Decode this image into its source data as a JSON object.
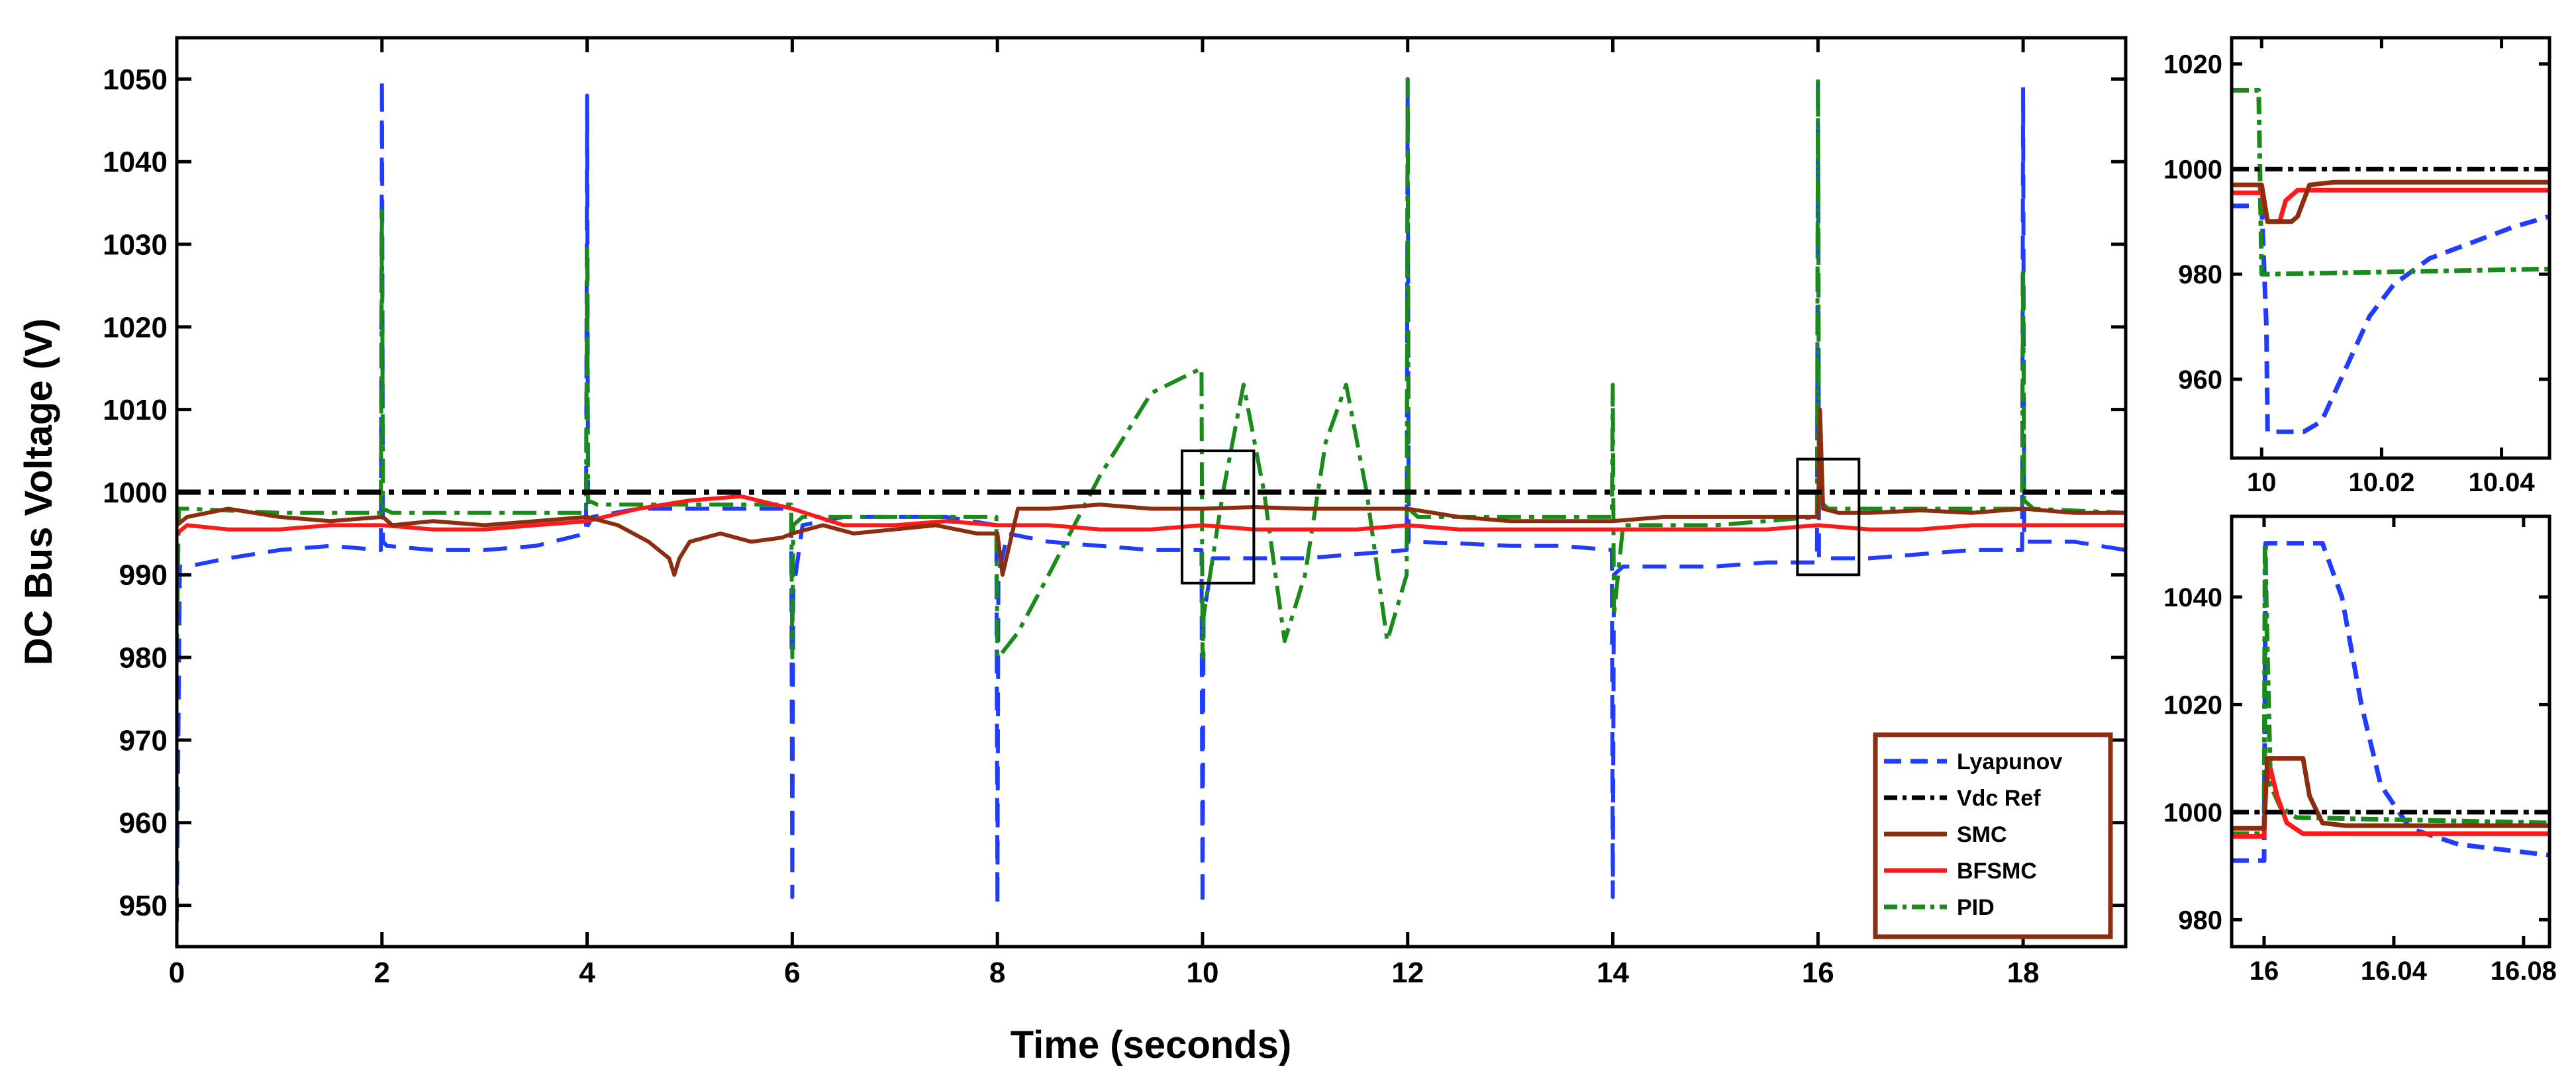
{
  "chart_data": [
    {
      "id": "main",
      "type": "line",
      "xlabel": "Time (seconds)",
      "ylabel": "DC Bus Voltage (V)",
      "xlim": [
        0,
        19
      ],
      "ylim": [
        945,
        1055
      ],
      "xticks": [
        0,
        2,
        4,
        6,
        8,
        10,
        12,
        14,
        16,
        18
      ],
      "yticks": [
        950,
        960,
        970,
        980,
        990,
        1000,
        1010,
        1020,
        1030,
        1040,
        1050
      ],
      "grid": false,
      "legend": {
        "placement": "bottom-right",
        "entries": [
          "Lyapunov",
          "Vdc Ref",
          "SMC",
          "BFSMC",
          "PID"
        ]
      },
      "zoom_boxes": [
        {
          "x": [
            9.8,
            10.5
          ],
          "y": [
            989,
            1005
          ]
        },
        {
          "x": [
            15.8,
            16.4
          ],
          "y": [
            990,
            1004
          ]
        }
      ],
      "series": [
        {
          "name": "Lyapunov",
          "color": "#1f3cff",
          "style": "dashed",
          "x": [
            0,
            0.03,
            0.1,
            0.5,
            1,
            1.5,
            1.99,
            2,
            2.01,
            2.05,
            2.5,
            3,
            3.5,
            3.99,
            4,
            4.01,
            4.05,
            4.5,
            5,
            5.5,
            5.99,
            6,
            6.01,
            6.1,
            6.5,
            7,
            7.5,
            7.99,
            8,
            8.01,
            8.1,
            8.5,
            9,
            9.5,
            9.99,
            10,
            10.01,
            10.1,
            10.5,
            11,
            11.5,
            11.99,
            12,
            12.01,
            12.05,
            12.5,
            13,
            13.5,
            13.99,
            14,
            14.01,
            14.1,
            14.5,
            15,
            15.5,
            15.99,
            16,
            16.01,
            16.1,
            16.5,
            17,
            17.5,
            17.99,
            18,
            18.01,
            18.1,
            18.5,
            19
          ],
          "y": [
            948,
            991,
            991,
            992,
            993,
            993.5,
            993,
            1050,
            994,
            993.5,
            993,
            993,
            993.5,
            995,
            1048,
            996,
            997,
            998,
            998,
            998,
            998,
            951,
            988,
            996,
            997,
            997,
            997,
            996,
            950,
            990,
            995,
            994,
            993.5,
            993,
            993,
            950,
            985,
            992,
            992,
            992,
            992.5,
            993,
            1050,
            994,
            994,
            993.8,
            993.5,
            993.5,
            993,
            951,
            990,
            991,
            991,
            991,
            991.5,
            991.5,
            1050,
            992,
            992,
            992,
            992.5,
            993,
            993,
            1049,
            994,
            994,
            994,
            993
          ]
        },
        {
          "name": "Vdc Ref",
          "color": "#000000",
          "style": "dashdot",
          "x": [
            0,
            19
          ],
          "y": [
            1000,
            1000
          ]
        },
        {
          "name": "SMC",
          "color": "#8b2e10",
          "style": "solid",
          "x": [
            0,
            0.1,
            0.5,
            1,
            1.5,
            2,
            2.01,
            2.1,
            2.5,
            3,
            3.5,
            4,
            4.3,
            4.6,
            4.8,
            4.85,
            4.9,
            5,
            5.3,
            5.6,
            5.9,
            6,
            6.3,
            6.6,
            7,
            7.4,
            7.8,
            8,
            8.05,
            8.2,
            8.5,
            9,
            9.5,
            10,
            10.5,
            11,
            11.5,
            12,
            12.5,
            13,
            13.5,
            14,
            14.5,
            15,
            15.5,
            16,
            16.02,
            16.05,
            16.2,
            16.5,
            17,
            17.5,
            18,
            18.5,
            19
          ],
          "y": [
            996,
            997,
            998,
            997,
            996.5,
            997,
            997,
            996,
            996.5,
            996,
            996.5,
            997,
            996,
            994,
            992,
            990,
            992,
            994,
            995,
            994,
            994.5,
            995,
            996,
            995,
            995.5,
            996,
            995,
            995,
            990,
            998,
            998,
            998.5,
            998,
            998,
            998.2,
            998,
            998,
            998,
            997,
            996.5,
            996.5,
            996.5,
            997,
            997,
            997,
            997,
            1010,
            998,
            997.5,
            997.5,
            997.8,
            997.5,
            998,
            997.5,
            997.5
          ]
        },
        {
          "name": "BFSMC",
          "color": "#ff1a1a",
          "style": "solid",
          "x": [
            0,
            0.1,
            0.5,
            1,
            1.5,
            2,
            2.5,
            3,
            3.5,
            4,
            4.5,
            5,
            5.5,
            6,
            6.5,
            7,
            7.5,
            8,
            8.5,
            9,
            9.5,
            10,
            10.5,
            11,
            11.5,
            12,
            12.5,
            13,
            13.5,
            14,
            14.5,
            15,
            15.5,
            16,
            16.5,
            17,
            17.5,
            18,
            18.5,
            19
          ],
          "y": [
            995,
            996,
            995.5,
            995.5,
            996,
            996,
            995.5,
            995.5,
            996,
            996.5,
            998,
            999,
            999.5,
            998,
            996,
            996,
            996.5,
            996,
            996,
            995.5,
            995.5,
            996,
            995.5,
            995.5,
            995.5,
            996,
            995.5,
            995.5,
            995.5,
            995.5,
            995.5,
            995.5,
            995.5,
            996,
            995.5,
            995.5,
            996,
            996,
            996,
            996
          ]
        },
        {
          "name": "PID",
          "color": "#1a8a1a",
          "style": "dashdot",
          "x": [
            0,
            0.02,
            0.1,
            1,
            1.99,
            2,
            2.01,
            2.1,
            3,
            3.99,
            4,
            4.01,
            4.1,
            5,
            5.99,
            6,
            6.01,
            6.1,
            7,
            7.99,
            8,
            8.01,
            8.2,
            8.5,
            9,
            9.5,
            9.99,
            10,
            10.01,
            10.2,
            10.4,
            10.6,
            10.8,
            11,
            11.2,
            11.4,
            11.6,
            11.8,
            11.99,
            12,
            12.01,
            12.1,
            13,
            13.99,
            14,
            14.01,
            14.1,
            15,
            15.99,
            16,
            16.01,
            16.1,
            17,
            17.99,
            18,
            18.01,
            18.1,
            19
          ],
          "y": [
            980,
            998,
            998,
            997.5,
            997.5,
            1034,
            998,
            997.5,
            997.5,
            997.5,
            1030,
            999,
            998.5,
            998.5,
            998.5,
            980,
            996,
            997,
            997,
            997,
            980,
            980,
            983,
            990,
            1002,
            1012,
            1015,
            980,
            985,
            1000,
            1013,
            1000,
            982,
            990,
            1006,
            1013,
            1000,
            982,
            990,
            1050,
            998,
            997,
            997,
            997,
            1013,
            985,
            996,
            996,
            997,
            1050,
            999,
            998,
            998,
            998,
            1027,
            999,
            998,
            997.5
          ]
        }
      ]
    },
    {
      "id": "inset_top",
      "type": "line",
      "xlim": [
        9.995,
        10.048
      ],
      "ylim": [
        945,
        1025
      ],
      "xticks": [
        10,
        10.02,
        10.04
      ],
      "yticks": [
        960,
        980,
        1000,
        1020
      ],
      "series": [
        {
          "name": "Lyapunov",
          "color": "#1f3cff",
          "style": "dashed",
          "x": [
            9.995,
            9.999,
            10,
            10.0008,
            10.001,
            10.005,
            10.007,
            10.01,
            10.014,
            10.018,
            10.022,
            10.028,
            10.035,
            10.042,
            10.048
          ],
          "y": [
            993,
            993,
            993,
            970,
            950,
            950,
            950,
            952,
            962,
            972,
            978,
            983,
            986,
            989,
            991
          ]
        },
        {
          "name": "Vdc Ref",
          "color": "#000000",
          "style": "dashdot",
          "x": [
            9.995,
            10.048
          ],
          "y": [
            1000,
            1000
          ]
        },
        {
          "name": "SMC",
          "color": "#8b2e10",
          "style": "solid",
          "x": [
            9.995,
            9.999,
            10,
            10.001,
            10.005,
            10.006,
            10.008,
            10.012,
            10.048
          ],
          "y": [
            997,
            997,
            997,
            990,
            990,
            991,
            997,
            997.5,
            997.5
          ]
        },
        {
          "name": "BFSMC",
          "color": "#ff1a1a",
          "style": "solid",
          "x": [
            9.995,
            9.999,
            10,
            10.001,
            10.003,
            10.004,
            10.006,
            10.048
          ],
          "y": [
            995.5,
            995.5,
            995.5,
            990,
            990,
            994,
            996,
            996
          ]
        },
        {
          "name": "PID",
          "color": "#1a8a1a",
          "style": "dashdot",
          "x": [
            9.995,
            9.999,
            9.9995,
            10,
            10.001,
            10.048
          ],
          "y": [
            1015,
            1015,
            1015,
            980,
            980,
            981
          ]
        }
      ]
    },
    {
      "id": "inset_bottom",
      "type": "line",
      "xlim": [
        15.99,
        16.088
      ],
      "ylim": [
        975,
        1055
      ],
      "xticks": [
        16,
        16.04,
        16.08
      ],
      "yticks": [
        980,
        1000,
        1020,
        1040
      ],
      "series": [
        {
          "name": "Lyapunov",
          "color": "#1f3cff",
          "style": "dashed",
          "x": [
            15.99,
            15.999,
            16,
            16.0005,
            16.006,
            16.012,
            16.018,
            16.024,
            16.03,
            16.036,
            16.045,
            16.06,
            16.088
          ],
          "y": [
            991,
            991,
            991,
            1050,
            1050,
            1050,
            1050,
            1040,
            1020,
            1005,
            997,
            994,
            992
          ]
        },
        {
          "name": "Vdc Ref",
          "color": "#000000",
          "style": "dashdot",
          "x": [
            15.99,
            16.088
          ],
          "y": [
            1000,
            1000
          ]
        },
        {
          "name": "SMC",
          "color": "#8b2e10",
          "style": "solid",
          "x": [
            15.99,
            15.999,
            16,
            16.001,
            16.003,
            16.012,
            16.014,
            16.018,
            16.025,
            16.088
          ],
          "y": [
            997,
            997,
            997,
            1010,
            1010,
            1010,
            1003,
            998,
            997.5,
            997.5
          ]
        },
        {
          "name": "BFSMC",
          "color": "#ff1a1a",
          "style": "solid",
          "x": [
            15.99,
            15.999,
            16,
            16.0005,
            16.002,
            16.004,
            16.007,
            16.012,
            16.088
          ],
          "y": [
            995.5,
            995.5,
            995.5,
            1005,
            1008,
            1003,
            998,
            996,
            996
          ]
        },
        {
          "name": "PID",
          "color": "#1a8a1a",
          "style": "dashdot",
          "x": [
            15.99,
            15.999,
            16,
            16.0003,
            16.001,
            16.002,
            16.005,
            16.01,
            16.088
          ],
          "y": [
            996,
            996,
            996,
            1050,
            1030,
            1005,
            1001,
            999,
            998
          ]
        }
      ]
    }
  ]
}
